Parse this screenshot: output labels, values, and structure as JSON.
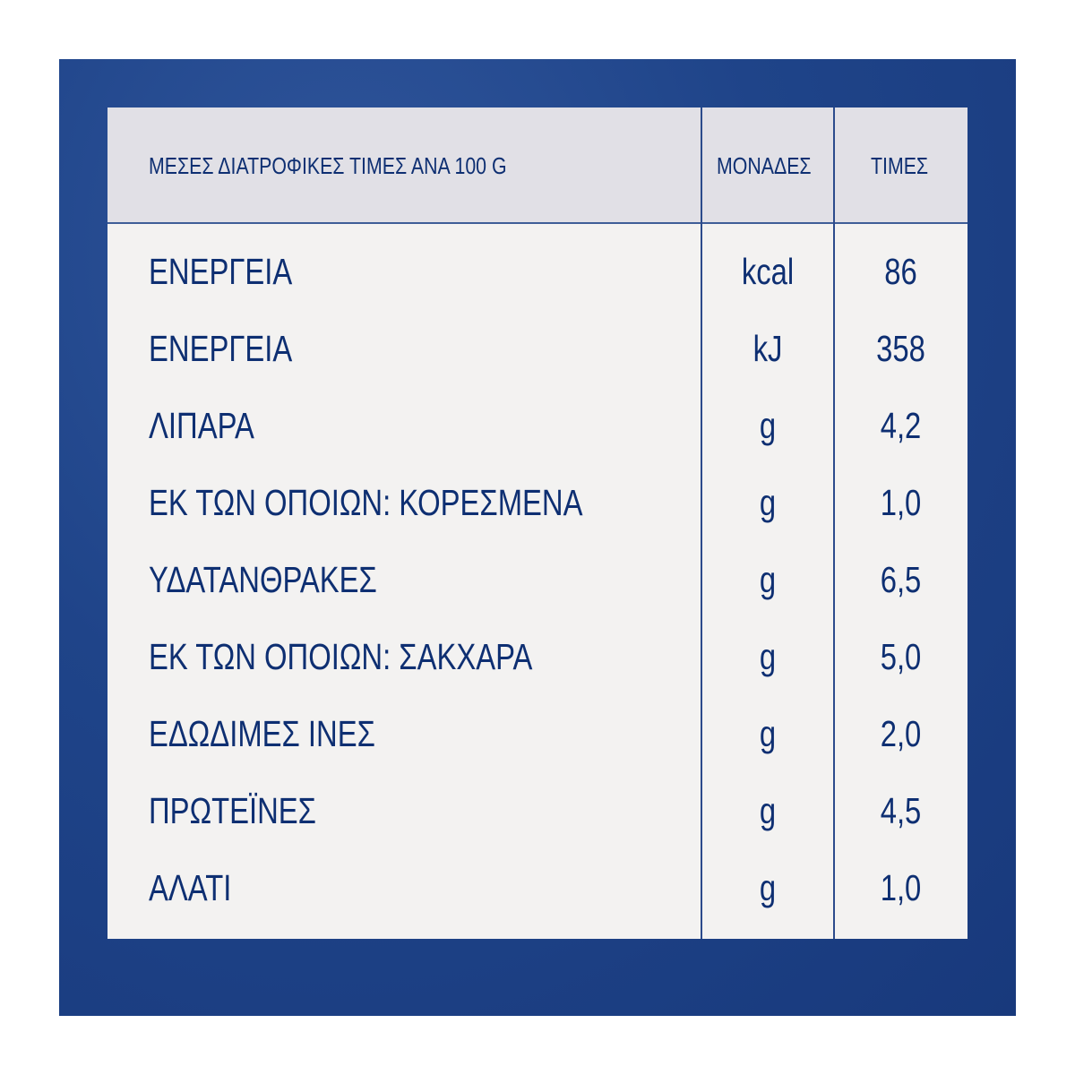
{
  "header": {
    "nutrient": "ΜΕΣΕΣ ΔΙΑΤΡΟΦΙΚΕΣ ΤΙΜΕΣ ΑΝΑ 100 G",
    "units": "ΜΟΝΑΔΕΣ",
    "values": "ΤΙΜΕΣ"
  },
  "rows": [
    {
      "name": "ΕΝΕΡΓΕΙΑ",
      "unit": "kcal",
      "value": "86"
    },
    {
      "name": "ΕΝΕΡΓΕΙΑ",
      "unit": "kJ",
      "value": "358"
    },
    {
      "name": "ΛΙΠΑΡΑ",
      "unit": "g",
      "value": "4,2"
    },
    {
      "name": "ΕΚ ΤΩΝ ΟΠΟΙΩΝ: ΚΟΡΕΣΜΕΝΑ",
      "unit": "g",
      "value": "1,0"
    },
    {
      "name": "ΥΔΑΤΑΝΘΡΑΚΕΣ",
      "unit": "g",
      "value": "6,5"
    },
    {
      "name": "ΕΚ ΤΩΝ ΟΠΟΙΩΝ: ΣΑΚΧΑΡΑ",
      "unit": "g",
      "value": "5,0"
    },
    {
      "name": "ΕΔΩΔΙΜΕΣ ΙΝΕΣ",
      "unit": "g",
      "value": "2,0"
    },
    {
      "name": "ΠΡΩΤΕΪΝΕΣ",
      "unit": "g",
      "value": "4,5"
    },
    {
      "name": "ΑΛΑΤΙ",
      "unit": "g",
      "value": "1,0"
    }
  ],
  "colors": {
    "background": "#1f4489",
    "text": "#0e2f72",
    "header_bg": "#e1e0e6",
    "body_bg": "#f3f2f1"
  }
}
